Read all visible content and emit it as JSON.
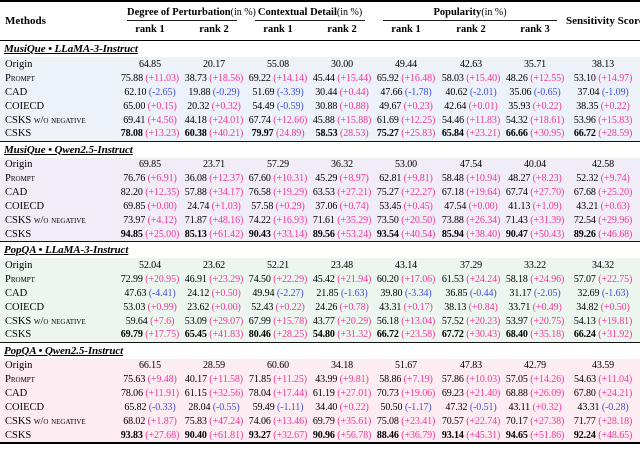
{
  "colors": {
    "positive_delta": "#ed3a9b",
    "negative_delta": "#4150e0",
    "section_backgrounds": [
      "#edf1f8",
      "#f1edf7",
      "#edf6ee",
      "#fdedf2"
    ]
  },
  "header": {
    "methods": "Methods",
    "sensitivity": "Sensitivity Score",
    "groups": [
      {
        "label": "Degree of Perturbation",
        "unit": "(in %)",
        "ranks": [
          "rank 1",
          "rank 2"
        ]
      },
      {
        "label": "Contextual Detail",
        "unit": "(in %)",
        "ranks": [
          "rank 1",
          "rank 2"
        ]
      },
      {
        "label": "Popularity",
        "unit": "(in %)",
        "ranks": [
          "rank 1",
          "rank 2",
          "rank 3"
        ]
      }
    ]
  },
  "sections": [
    {
      "title": "MusiQue • LLaMA-3-Instruct",
      "bg": "#edf1f8",
      "rows": [
        {
          "method": "Origin",
          "smallcaps": false,
          "bold": false,
          "cells": [
            {
              "v": "64.85"
            },
            {
              "v": "20.17"
            },
            {
              "v": "55.08"
            },
            {
              "v": "30.00"
            },
            {
              "v": "49.44"
            },
            {
              "v": "42.63"
            },
            {
              "v": "35.71"
            },
            {
              "v": "38.13"
            }
          ]
        },
        {
          "method": "Prompt",
          "smallcaps": true,
          "bold": false,
          "cells": [
            {
              "v": "75.88",
              "d": "+11.03"
            },
            {
              "v": "38.73",
              "d": "+18.56"
            },
            {
              "v": "69.22",
              "d": "+14.14"
            },
            {
              "v": "45.44",
              "d": "+15.44"
            },
            {
              "v": "65.92",
              "d": "+16.48"
            },
            {
              "v": "58.03",
              "d": "+15.40"
            },
            {
              "v": "48.26",
              "d": "+12.55"
            },
            {
              "v": "53.10",
              "d": "+14.97"
            }
          ]
        },
        {
          "method": "CAD",
          "smallcaps": false,
          "bold": false,
          "cells": [
            {
              "v": "62.10",
              "d": "-2.65"
            },
            {
              "v": "19.88",
              "d": "-0.29"
            },
            {
              "v": "51.69",
              "d": "-3.39"
            },
            {
              "v": "30.44",
              "d": "+0.44"
            },
            {
              "v": "47.66",
              "d": "-1.78"
            },
            {
              "v": "40.62",
              "d": "-2.01"
            },
            {
              "v": "35.06",
              "d": "-0.65"
            },
            {
              "v": "37.04",
              "d": "-1.09"
            }
          ]
        },
        {
          "method": "COIECD",
          "smallcaps": false,
          "bold": false,
          "cells": [
            {
              "v": "65.00",
              "d": "+0.15"
            },
            {
              "v": "20.32",
              "d": "+0.32"
            },
            {
              "v": "54.49",
              "d": "-0.59"
            },
            {
              "v": "30.88",
              "d": "+0.88"
            },
            {
              "v": "49.67",
              "d": "+0.23"
            },
            {
              "v": "42.64",
              "d": "+0.01"
            },
            {
              "v": "35.93",
              "d": "+0.22"
            },
            {
              "v": "38.35",
              "d": "+0.22"
            }
          ]
        },
        {
          "method": "CSKS w/o negative",
          "smallcaps": true,
          "bold": false,
          "cells": [
            {
              "v": "69.41",
              "d": "+4.56"
            },
            {
              "v": "44.18",
              "d": "+24.01"
            },
            {
              "v": "67.74",
              "d": "+12.66"
            },
            {
              "v": "45.88",
              "d": "+15.88"
            },
            {
              "v": "61.69",
              "d": "+12.25"
            },
            {
              "v": "54.46",
              "d": "+11.83"
            },
            {
              "v": "54.32",
              "d": "+18.61"
            },
            {
              "v": "53.96",
              "d": "+15.83"
            }
          ]
        },
        {
          "method": "CSKS",
          "smallcaps": false,
          "bold": true,
          "cells": [
            {
              "v": "78.08",
              "d": "+13.23"
            },
            {
              "v": "60.38",
              "d": "+40.21"
            },
            {
              "v": "79.97",
              "d": "24.89"
            },
            {
              "v": "58.53",
              "d": "28.53"
            },
            {
              "v": "75.27",
              "d": "+25.83"
            },
            {
              "v": "65.84",
              "d": "+23.21"
            },
            {
              "v": "66.66",
              "d": "+30.95"
            },
            {
              "v": "66.72",
              "d": "+28.59"
            }
          ]
        }
      ]
    },
    {
      "title": "MusiQue • Qwen2.5-Instruct",
      "bg": "#f1edf7",
      "rows": [
        {
          "method": "Origin",
          "smallcaps": false,
          "bold": false,
          "cells": [
            {
              "v": "69.85"
            },
            {
              "v": "23.71"
            },
            {
              "v": "57.29"
            },
            {
              "v": "36.32"
            },
            {
              "v": "53.00"
            },
            {
              "v": "47.54"
            },
            {
              "v": "40.04"
            },
            {
              "v": "42.58"
            }
          ]
        },
        {
          "method": "Prompt",
          "smallcaps": true,
          "bold": false,
          "cells": [
            {
              "v": "76.76",
              "d": "+6.91"
            },
            {
              "v": "36.08",
              "d": "+12.37"
            },
            {
              "v": "67.60",
              "d": "+10.31"
            },
            {
              "v": "45.29",
              "d": "+8.97"
            },
            {
              "v": "62.81",
              "d": "+9.81"
            },
            {
              "v": "58.48",
              "d": "+10.94"
            },
            {
              "v": "48.27",
              "d": "+8.23"
            },
            {
              "v": "52.32",
              "d": "+9.74"
            }
          ]
        },
        {
          "method": "CAD",
          "smallcaps": false,
          "bold": false,
          "cells": [
            {
              "v": "82.20",
              "d": "+12.35"
            },
            {
              "v": "57.88",
              "d": "+34.17"
            },
            {
              "v": "76.58",
              "d": "+19.29"
            },
            {
              "v": "63.53",
              "d": "+27.21"
            },
            {
              "v": "75.27",
              "d": "+22.27"
            },
            {
              "v": "67.18",
              "d": "+19.64"
            },
            {
              "v": "67.74",
              "d": "+27.70"
            },
            {
              "v": "67.68",
              "d": "+25.20"
            }
          ]
        },
        {
          "method": "COIECD",
          "smallcaps": false,
          "bold": false,
          "cells": [
            {
              "v": "69.85",
              "d": "+0.00"
            },
            {
              "v": "24.74",
              "d": "+1.03"
            },
            {
              "v": "57.58",
              "d": "+0.29"
            },
            {
              "v": "37.06",
              "d": "+0.74"
            },
            {
              "v": "53.45",
              "d": "+0.45"
            },
            {
              "v": "47.54",
              "d": "+0.00"
            },
            {
              "v": "41.13",
              "d": "+1.09"
            },
            {
              "v": "43.21",
              "d": "+0.63"
            }
          ]
        },
        {
          "method": "CSKS w/o negative",
          "smallcaps": true,
          "bold": false,
          "cells": [
            {
              "v": "73.97",
              "d": "+4.12"
            },
            {
              "v": "71.87",
              "d": "+48.16"
            },
            {
              "v": "74.22",
              "d": "+16.93"
            },
            {
              "v": "71.61",
              "d": "+35.29"
            },
            {
              "v": "73.50",
              "d": "+20.50"
            },
            {
              "v": "73.88",
              "d": "+26.34"
            },
            {
              "v": "71.43",
              "d": "+31.39"
            },
            {
              "v": "72.54",
              "d": "+29.96"
            }
          ]
        },
        {
          "method": "CSKS",
          "smallcaps": false,
          "bold": true,
          "cells": [
            {
              "v": "94.85",
              "d": "+25.00"
            },
            {
              "v": "85.13",
              "d": "+61.42"
            },
            {
              "v": "90.43",
              "d": "+33.14"
            },
            {
              "v": "89.56",
              "d": "+53.24"
            },
            {
              "v": "93.54",
              "d": "+40.54"
            },
            {
              "v": "85.94",
              "d": "+38.40"
            },
            {
              "v": "90.47",
              "d": "+50.43"
            },
            {
              "v": "89.26",
              "d": "+46.68"
            }
          ]
        }
      ]
    },
    {
      "title": "PopQA • LLaMA-3-Instruct",
      "bg": "#edf6ee",
      "rows": [
        {
          "method": "Origin",
          "smallcaps": false,
          "bold": false,
          "cells": [
            {
              "v": "52.04"
            },
            {
              "v": "23.62"
            },
            {
              "v": "52.21"
            },
            {
              "v": "23.48"
            },
            {
              "v": "43.14"
            },
            {
              "v": "37.29"
            },
            {
              "v": "33.22"
            },
            {
              "v": "34.32"
            }
          ]
        },
        {
          "method": "Prompt",
          "smallcaps": true,
          "bold": false,
          "cells": [
            {
              "v": "72.99",
              "d": "+20.95"
            },
            {
              "v": "46.91",
              "d": "+23.29"
            },
            {
              "v": "74.50",
              "d": "+22.29"
            },
            {
              "v": "45.42",
              "d": "+21.94"
            },
            {
              "v": "60.20",
              "d": "+17.06"
            },
            {
              "v": "61.53",
              "d": "+24.24"
            },
            {
              "v": "58.18",
              "d": "+24.96"
            },
            {
              "v": "57.07",
              "d": "+22.75"
            }
          ]
        },
        {
          "method": "CAD",
          "smallcaps": false,
          "bold": false,
          "cells": [
            {
              "v": "47.63",
              "d": "-4.41"
            },
            {
              "v": "24.12",
              "d": "+0.50"
            },
            {
              "v": "49.94",
              "d": "-2.27"
            },
            {
              "v": "21.85",
              "d": "-1.63"
            },
            {
              "v": "39.80",
              "d": "-3.34"
            },
            {
              "v": "36.85",
              "d": "-0.44"
            },
            {
              "v": "31.17",
              "d": "-2.05"
            },
            {
              "v": "32.69",
              "d": "-1.63"
            }
          ]
        },
        {
          "method": "COIECD",
          "smallcaps": false,
          "bold": false,
          "cells": [
            {
              "v": "53.03",
              "d": "+0.99"
            },
            {
              "v": "23.62",
              "d": "+0.00"
            },
            {
              "v": "52.43",
              "d": "+0.22"
            },
            {
              "v": "24.26",
              "d": "+0.78"
            },
            {
              "v": "43.31",
              "d": "+0.17"
            },
            {
              "v": "38.13",
              "d": "+0.84"
            },
            {
              "v": "33.71",
              "d": "+0.49"
            },
            {
              "v": "34.82",
              "d": "+0.50"
            }
          ]
        },
        {
          "method": "CSKS w/o negative",
          "smallcaps": true,
          "bold": false,
          "cells": [
            {
              "v": "59.64",
              "d": "+7.6"
            },
            {
              "v": "53.09",
              "d": "+29.07"
            },
            {
              "v": "67.99",
              "d": "+15.78"
            },
            {
              "v": "43.77",
              "d": "+20.29"
            },
            {
              "v": "56.18",
              "d": "+13.04"
            },
            {
              "v": "57.52",
              "d": "+20.23"
            },
            {
              "v": "53.97",
              "d": "+20.75"
            },
            {
              "v": "54.13",
              "d": "+19.81"
            }
          ]
        },
        {
          "method": "CSKS",
          "smallcaps": false,
          "bold": true,
          "cells": [
            {
              "v": "69.79",
              "d": "+17.75"
            },
            {
              "v": "65.45",
              "d": "+41.83"
            },
            {
              "v": "80.46",
              "d": "+28.25"
            },
            {
              "v": "54.80",
              "d": "+31.32"
            },
            {
              "v": "66.72",
              "d": "+23.58"
            },
            {
              "v": "67.72",
              "d": "+30.43"
            },
            {
              "v": "68.40",
              "d": "+35.18"
            },
            {
              "v": "66.24",
              "d": "+31.92"
            }
          ]
        }
      ]
    },
    {
      "title": "PopQA • Qwen2.5-Instruct",
      "bg": "#fdedf2",
      "rows": [
        {
          "method": "Origin",
          "smallcaps": false,
          "bold": false,
          "cells": [
            {
              "v": "66.15"
            },
            {
              "v": "28.59"
            },
            {
              "v": "60.60"
            },
            {
              "v": "34.18"
            },
            {
              "v": "51.67"
            },
            {
              "v": "47.83"
            },
            {
              "v": "42.79"
            },
            {
              "v": "43.59"
            }
          ]
        },
        {
          "method": "Prompt",
          "smallcaps": true,
          "bold": false,
          "cells": [
            {
              "v": "75.63",
              "d": "+9.48"
            },
            {
              "v": "40.17",
              "d": "+11.58"
            },
            {
              "v": "71.85",
              "d": "+11.25"
            },
            {
              "v": "43.99",
              "d": "+9.81"
            },
            {
              "v": "58.86",
              "d": "+7.19"
            },
            {
              "v": "57.86",
              "d": "+10.03"
            },
            {
              "v": "57.05",
              "d": "+14.26"
            },
            {
              "v": "54.63",
              "d": "+11.04"
            }
          ]
        },
        {
          "method": "CAD",
          "smallcaps": false,
          "bold": false,
          "cells": [
            {
              "v": "78.06",
              "d": "+11.91"
            },
            {
              "v": "61.15",
              "d": "+32.56"
            },
            {
              "v": "78.04",
              "d": "+17.44"
            },
            {
              "v": "61.19",
              "d": "+27.01"
            },
            {
              "v": "70.73",
              "d": "+19.06"
            },
            {
              "v": "69.23",
              "d": "+21.40"
            },
            {
              "v": "68.88",
              "d": "+26.09"
            },
            {
              "v": "67.80",
              "d": "+24.21"
            }
          ]
        },
        {
          "method": "COIECD",
          "smallcaps": false,
          "bold": false,
          "cells": [
            {
              "v": "65.82",
              "d": "-0.33"
            },
            {
              "v": "28.04",
              "d": "-0.55"
            },
            {
              "v": "59.49",
              "d": "-1.11"
            },
            {
              "v": "34.40",
              "d": "+0.22"
            },
            {
              "v": "50.50",
              "d": "-1.17"
            },
            {
              "v": "47.32",
              "d": "-0.51"
            },
            {
              "v": "43.11",
              "d": "+0.32"
            },
            {
              "v": "43.31",
              "d": "-0.28"
            }
          ]
        },
        {
          "method": "CSKS w/o negative",
          "smallcaps": true,
          "bold": false,
          "cells": [
            {
              "v": "68.02",
              "d": "+1.87"
            },
            {
              "v": "75.83",
              "d": "+47.24"
            },
            {
              "v": "74.06",
              "d": "+13.46"
            },
            {
              "v": "69.79",
              "d": "+35.61"
            },
            {
              "v": "75.08",
              "d": "+23.41"
            },
            {
              "v": "70.57",
              "d": "+22.74"
            },
            {
              "v": "70.17",
              "d": "+27.38"
            },
            {
              "v": "71.77",
              "d": "+28.18"
            }
          ]
        },
        {
          "method": "CSKS",
          "smallcaps": false,
          "bold": true,
          "cells": [
            {
              "v": "93.83",
              "d": "+27.68"
            },
            {
              "v": "90.40",
              "d": "+61.81"
            },
            {
              "v": "93.27",
              "d": "+32.67"
            },
            {
              "v": "90.96",
              "d": "+56.78"
            },
            {
              "v": "88.46",
              "d": "+36.79"
            },
            {
              "v": "93.14",
              "d": "+45.31"
            },
            {
              "v": "94.65",
              "d": "+51.86"
            },
            {
              "v": "92.24",
              "d": "+48.65"
            }
          ]
        }
      ]
    }
  ]
}
